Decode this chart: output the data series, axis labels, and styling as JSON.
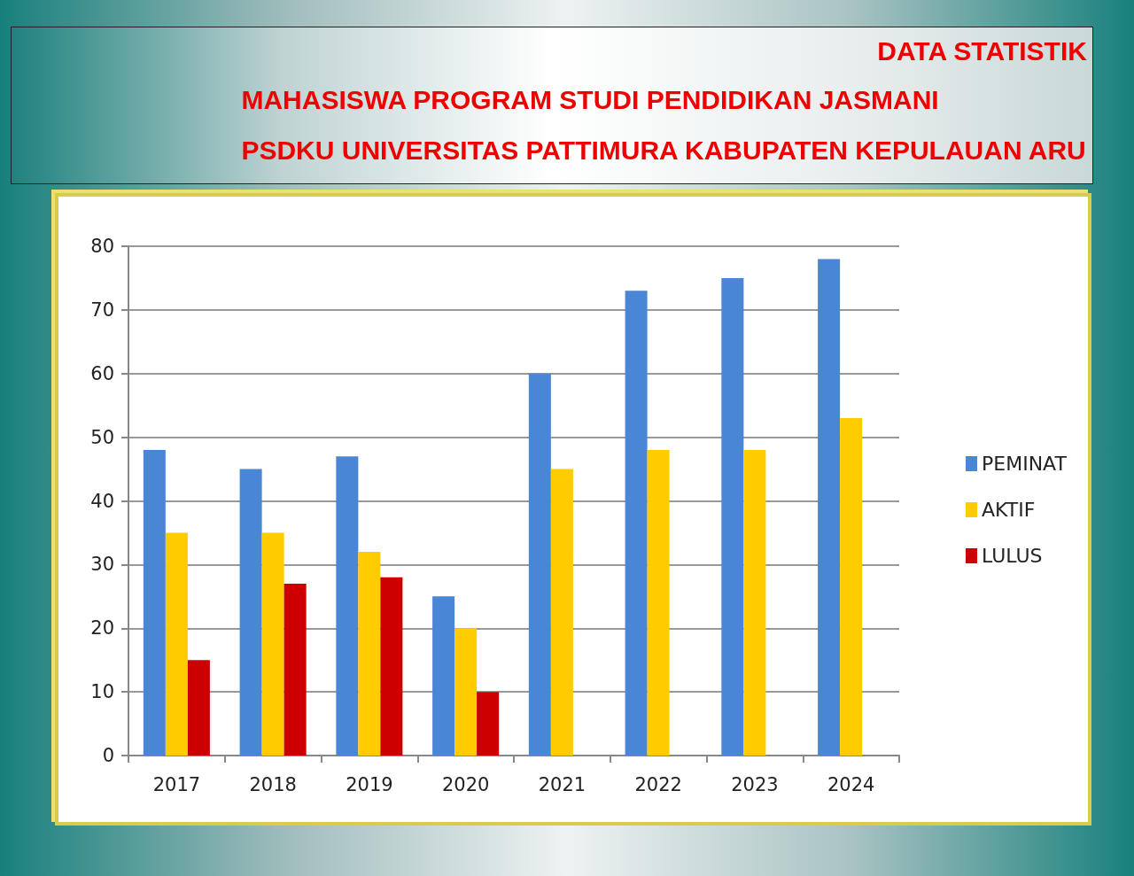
{
  "chart_data": {
    "type": "bar",
    "title": "DATA STATISTIK",
    "subtitle": "MAHASISWA PROGRAM STUDI PENDIDIKAN JASMANI\nPSDKU UNIVERSITAS PATTIMURA KABUPATEN KEPULAUAN ARU",
    "categories": [
      "2017",
      "2018",
      "2019",
      "2020",
      "2021",
      "2022",
      "2023",
      "2024"
    ],
    "series": [
      {
        "name": "PEMINAT",
        "color": "#4a86d6",
        "values": [
          48,
          45,
          47,
          25,
          60,
          73,
          75,
          78
        ]
      },
      {
        "name": "AKTIF",
        "color": "#ffcc00",
        "values": [
          35,
          35,
          32,
          20,
          45,
          48,
          48,
          53
        ]
      },
      {
        "name": "LULUS",
        "color": "#cc0000",
        "values": [
          15,
          27,
          28,
          10,
          null,
          null,
          null,
          null
        ]
      }
    ],
    "ylim": [
      0,
      80
    ],
    "yticks": [
      0,
      10,
      20,
      30,
      40,
      50,
      60,
      70,
      80
    ],
    "grid": "y",
    "legend": "right"
  }
}
